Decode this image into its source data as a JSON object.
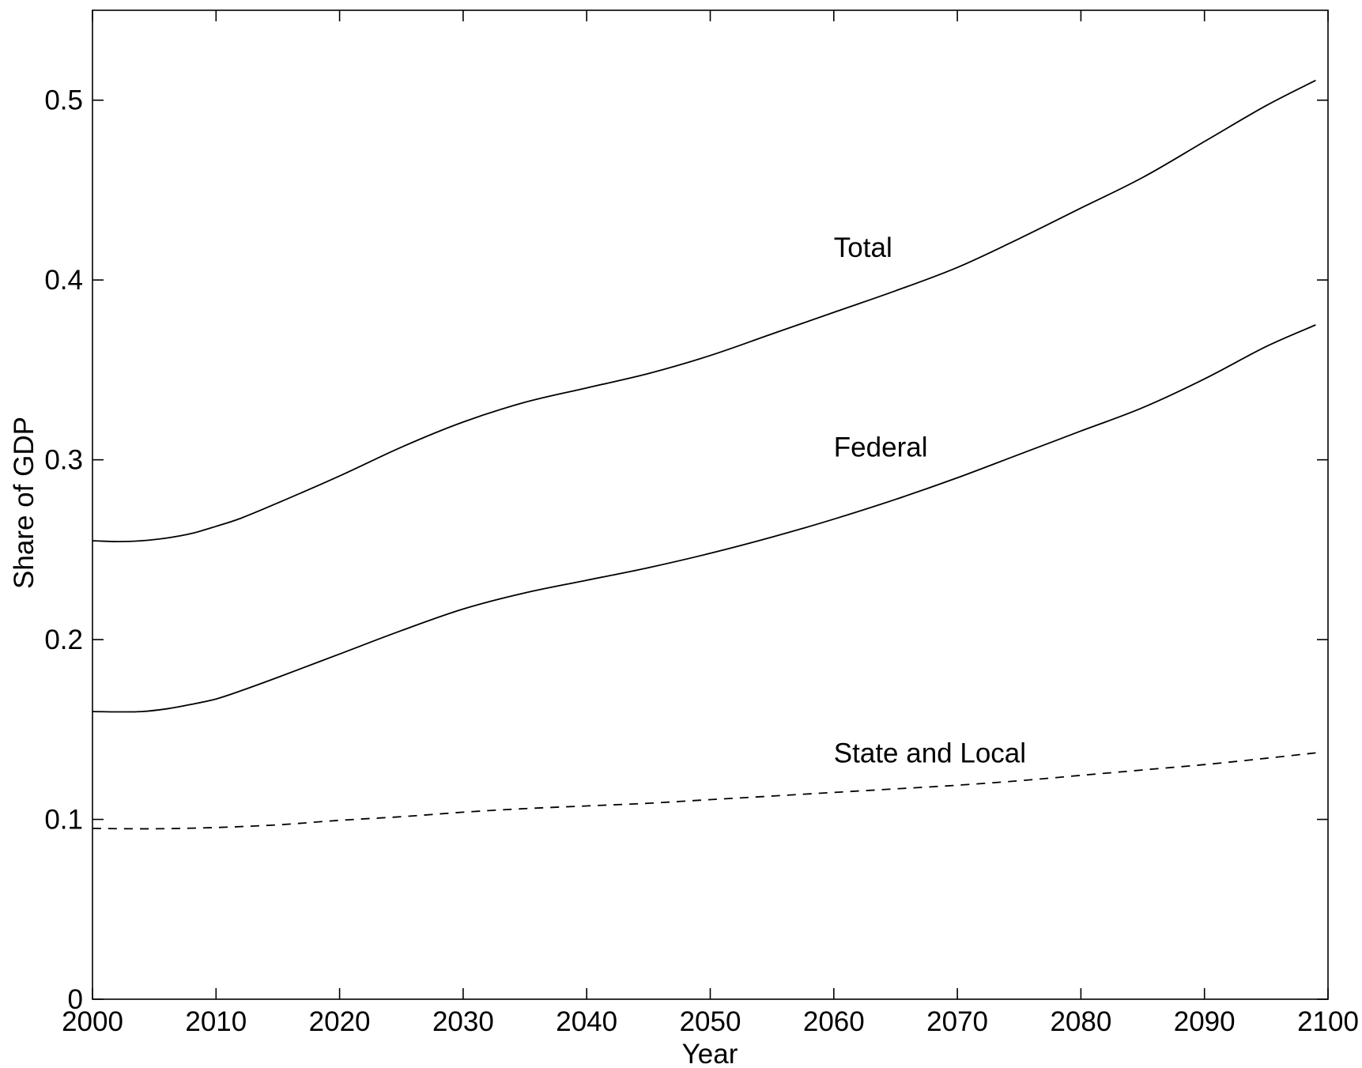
{
  "chart_data": {
    "type": "line",
    "title": "",
    "xlabel": "Year",
    "ylabel": "Share of GDP",
    "xlim": [
      2000,
      2100
    ],
    "ylim": [
      0,
      0.55
    ],
    "x_ticks": [
      2000,
      2010,
      2020,
      2030,
      2040,
      2050,
      2060,
      2070,
      2080,
      2090,
      2100
    ],
    "y_ticks": [
      0,
      0.1,
      0.2,
      0.3,
      0.4,
      0.5
    ],
    "y_tick_labels": [
      "0",
      "0.1",
      "0.2",
      "0.3",
      "0.4",
      "0.5"
    ],
    "grid": false,
    "series": [
      {
        "name": "Total",
        "line_style": "solid",
        "label_at": [
          2060,
          0.418
        ],
        "x": [
          2000,
          2002,
          2004,
          2006,
          2008,
          2010,
          2012,
          2015,
          2020,
          2025,
          2030,
          2035,
          2040,
          2045,
          2050,
          2055,
          2060,
          2065,
          2070,
          2075,
          2080,
          2085,
          2090,
          2095,
          2099
        ],
        "values": [
          0.255,
          0.2545,
          0.255,
          0.2565,
          0.259,
          0.263,
          0.2675,
          0.276,
          0.291,
          0.307,
          0.321,
          0.332,
          0.34,
          0.348,
          0.358,
          0.37,
          0.382,
          0.394,
          0.407,
          0.423,
          0.44,
          0.457,
          0.477,
          0.497,
          0.511
        ]
      },
      {
        "name": "Federal",
        "line_style": "solid",
        "label_at": [
          2060,
          0.307
        ],
        "x": [
          2000,
          2002,
          2004,
          2006,
          2008,
          2010,
          2012,
          2015,
          2020,
          2025,
          2030,
          2035,
          2040,
          2045,
          2050,
          2055,
          2060,
          2065,
          2070,
          2075,
          2080,
          2085,
          2090,
          2095,
          2099
        ],
        "values": [
          0.16,
          0.1598,
          0.16,
          0.1615,
          0.164,
          0.167,
          0.1715,
          0.179,
          0.192,
          0.205,
          0.217,
          0.226,
          0.233,
          0.24,
          0.248,
          0.257,
          0.267,
          0.278,
          0.29,
          0.303,
          0.316,
          0.329,
          0.345,
          0.363,
          0.375
        ]
      },
      {
        "name": "State and Local",
        "line_style": "dashed",
        "label_at": [
          2060,
          0.137
        ],
        "x": [
          2000,
          2005,
          2010,
          2015,
          2020,
          2025,
          2030,
          2035,
          2040,
          2045,
          2050,
          2055,
          2060,
          2065,
          2070,
          2075,
          2080,
          2085,
          2090,
          2095,
          2099
        ],
        "values": [
          0.095,
          0.0948,
          0.0955,
          0.097,
          0.0995,
          0.1015,
          0.104,
          0.106,
          0.1075,
          0.109,
          0.111,
          0.113,
          0.115,
          0.117,
          0.119,
          0.1215,
          0.1245,
          0.1275,
          0.1305,
          0.134,
          0.137
        ]
      }
    ]
  }
}
